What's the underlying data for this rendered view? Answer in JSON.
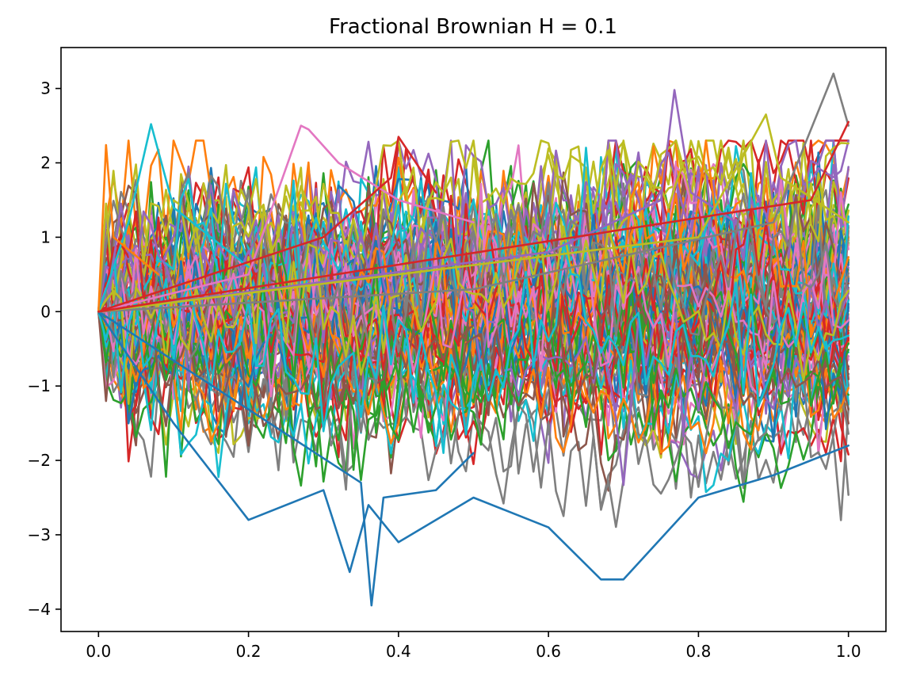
{
  "chart_data": {
    "type": "line",
    "title": "Fractional Brownian H = 0.1",
    "xlabel": "",
    "ylabel": "",
    "xlim": [
      -0.05,
      1.05
    ],
    "ylim": [
      -4.3,
      3.55
    ],
    "x_ticks": [
      0.0,
      0.2,
      0.4,
      0.6,
      0.8,
      1.0
    ],
    "x_tick_labels": [
      "0.0",
      "0.2",
      "0.4",
      "0.6",
      "0.8",
      "1.0"
    ],
    "y_ticks": [
      -4,
      -3,
      -2,
      -1,
      0,
      1,
      2,
      3
    ],
    "y_tick_labels": [
      "−4",
      "−3",
      "−2",
      "−1",
      "0",
      "1",
      "2",
      "3"
    ],
    "grid": false,
    "legend": "none",
    "n_series": 100,
    "n_points": 101,
    "hurst": 0.1,
    "colors": [
      "#1f77b4",
      "#ff7f0e",
      "#2ca02c",
      "#d62728",
      "#9467bd",
      "#8c564b",
      "#e377c2",
      "#7f7f7f",
      "#bcbd22",
      "#17becf"
    ],
    "highlighted_series": [
      {
        "color": "#1f77b4",
        "x": [
          0.0,
          0.1,
          0.2,
          0.3,
          0.335,
          0.36,
          0.4,
          0.5,
          0.6,
          0.67,
          0.7,
          0.8,
          0.9,
          1.0
        ],
        "values": [
          0.0,
          -1.5,
          -2.8,
          -2.4,
          -3.5,
          -2.6,
          -3.1,
          -2.5,
          -2.9,
          -3.6,
          -3.6,
          -2.5,
          -2.2,
          -1.8
        ]
      },
      {
        "color": "#1f77b4",
        "x": [
          0.0,
          0.35,
          0.364,
          0.38,
          0.45,
          0.5
        ],
        "values": [
          0.0,
          -2.3,
          -3.95,
          -2.5,
          -2.4,
          -1.9
        ]
      },
      {
        "color": "#7f7f7f",
        "x": [
          0.0,
          0.5,
          0.9,
          0.98,
          1.0
        ],
        "values": [
          0.0,
          0.3,
          1.2,
          3.2,
          2.5
        ]
      },
      {
        "color": "#9467bd",
        "x": [
          0.0,
          0.6,
          0.75,
          0.768,
          0.79,
          0.85
        ],
        "values": [
          0.0,
          0.8,
          1.5,
          2.98,
          1.6,
          1.2
        ]
      },
      {
        "color": "#e377c2",
        "x": [
          0.0,
          0.2,
          0.27,
          0.28,
          0.32,
          0.4,
          0.5
        ],
        "values": [
          0.0,
          0.5,
          2.5,
          2.45,
          2.0,
          1.5,
          1.2
        ]
      },
      {
        "color": "#17becf",
        "x": [
          0.0,
          0.04,
          0.07,
          0.1,
          0.2
        ],
        "values": [
          0.0,
          1.2,
          2.52,
          1.4,
          0.6
        ]
      },
      {
        "color": "#d62728",
        "x": [
          0.0,
          0.3,
          0.39,
          0.4,
          0.45
        ],
        "values": [
          0.0,
          1.0,
          1.8,
          2.35,
          1.6
        ]
      },
      {
        "color": "#ff7f0e",
        "x": [
          0.0,
          0.01,
          0.02,
          0.08
        ],
        "values": [
          0.0,
          2.24,
          1.0,
          0.5
        ]
      },
      {
        "color": "#bcbd22",
        "x": [
          0.0,
          0.8,
          0.89,
          0.91,
          1.0
        ],
        "values": [
          0.0,
          1.0,
          2.65,
          1.8,
          1.2
        ]
      },
      {
        "color": "#d62728",
        "x": [
          0.0,
          0.95,
          1.0
        ],
        "values": [
          0.0,
          1.5,
          2.55
        ]
      }
    ]
  }
}
